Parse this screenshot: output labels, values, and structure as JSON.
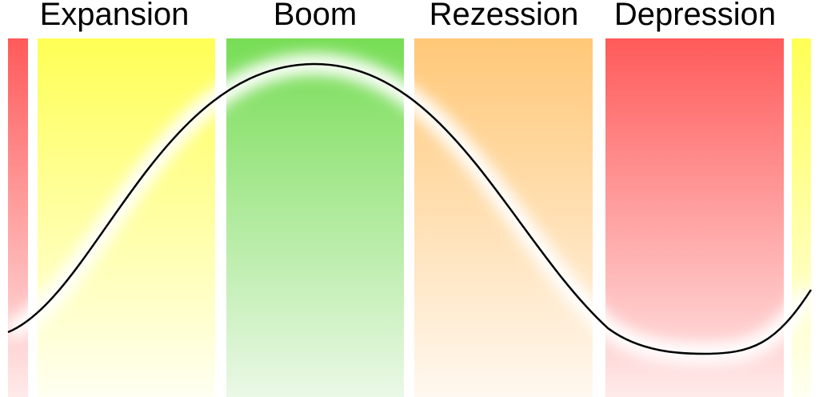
{
  "phases": [
    {
      "label": "Expansion",
      "color_top": "#ffff55",
      "color_bottom": "#fffff2"
    },
    {
      "label": "Boom",
      "color_top": "#77dd55",
      "color_bottom": "#eaf8e6"
    },
    {
      "label": "Rezession",
      "color_top": "#ffc878",
      "color_bottom": "#fff8f0"
    },
    {
      "label": "Depression",
      "color_top": "#ff5a5a",
      "color_bottom": "#ffeaea"
    }
  ],
  "curve_color": "#000000"
}
